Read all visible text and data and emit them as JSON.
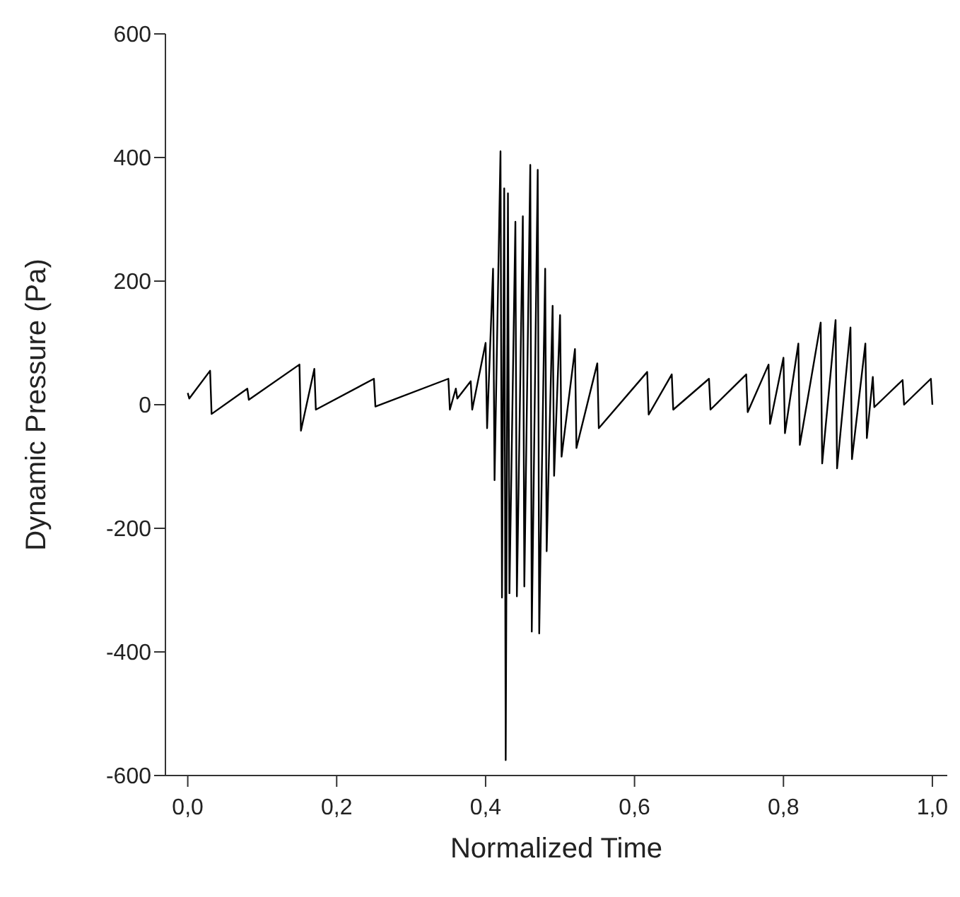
{
  "chart_data": {
    "type": "line",
    "xlabel": "Normalized Time",
    "ylabel": "Dynamic Pressure (Pa)",
    "xlim": [
      -0.03,
      1.02
    ],
    "ylim": [
      -600,
      600
    ],
    "xticks": [
      {
        "value": 0,
        "label": "0,0"
      },
      {
        "value": 0.2,
        "label": "0,2"
      },
      {
        "value": 0.4,
        "label": "0,4"
      },
      {
        "value": 0.6,
        "label": "0,6"
      },
      {
        "value": 0.8,
        "label": "0,8"
      },
      {
        "value": 1,
        "label": "1,0"
      }
    ],
    "yticks": [
      -600,
      -400,
      -200,
      0,
      200,
      400,
      600
    ],
    "marker": "none",
    "line_style": "solid",
    "series": [
      {
        "color": "#000000",
        "x": [
          0,
          0.002,
          0.03,
          0.032,
          0.08,
          0.082,
          0.15,
          0.152,
          0.17,
          0.172,
          0.25,
          0.252,
          0.35,
          0.352,
          0.36,
          0.362,
          0.38,
          0.382,
          0.4,
          0.402,
          0.41,
          0.412,
          0.42,
          0.422,
          0.425,
          0.427,
          0.43,
          0.432,
          0.44,
          0.442,
          0.45,
          0.452,
          0.46,
          0.462,
          0.47,
          0.472,
          0.48,
          0.482,
          0.49,
          0.492,
          0.5,
          0.502,
          0.52,
          0.522,
          0.55,
          0.552,
          0.617,
          0.619,
          0.65,
          0.652,
          0.7,
          0.702,
          0.75,
          0.752,
          0.78,
          0.782,
          0.8,
          0.802,
          0.82,
          0.822,
          0.85,
          0.852,
          0.87,
          0.872,
          0.89,
          0.892,
          0.91,
          0.912,
          0.92,
          0.922,
          0.96,
          0.962,
          0.998,
          1
        ],
        "values": [
          19,
          10,
          55,
          -15,
          26,
          8,
          65,
          -42,
          58,
          -8,
          42,
          -3,
          42,
          -8,
          26,
          10,
          38,
          -8,
          100,
          -38,
          220,
          -122,
          410,
          -312,
          350,
          -575,
          342,
          -305,
          296,
          -310,
          305,
          -294,
          388,
          -367,
          380,
          -370,
          220,
          -237,
          160,
          -115,
          145,
          -84,
          90,
          -70,
          67,
          -38,
          53,
          -16,
          49,
          -8,
          42,
          -8,
          49,
          -12,
          65,
          -31,
          76,
          -46,
          99,
          -65,
          133,
          -95,
          137,
          -103,
          125,
          -88,
          99,
          -54,
          45,
          -4,
          40,
          0,
          42,
          0
        ]
      }
    ]
  }
}
